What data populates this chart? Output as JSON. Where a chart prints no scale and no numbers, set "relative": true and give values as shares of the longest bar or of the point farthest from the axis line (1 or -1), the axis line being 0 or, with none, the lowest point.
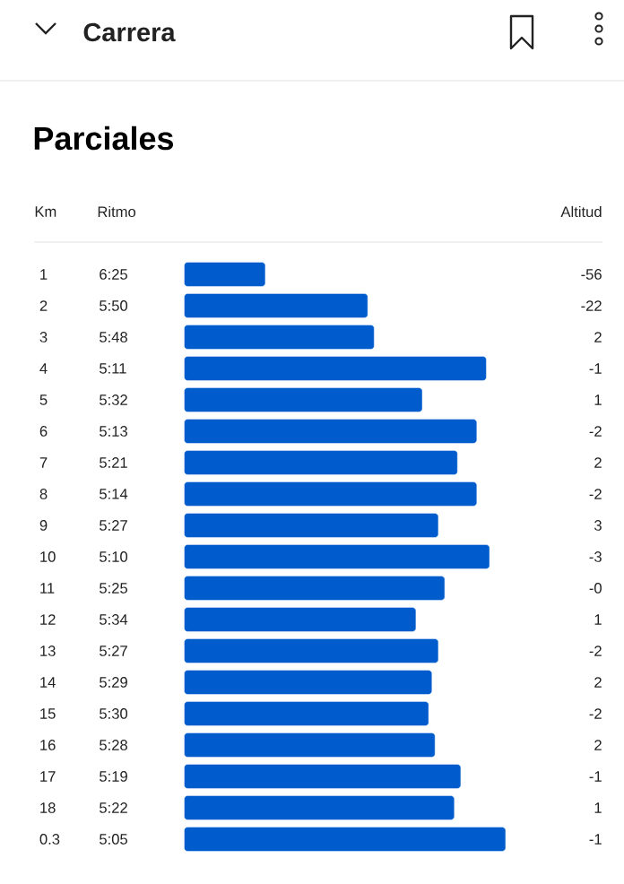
{
  "chart_data": {
    "type": "bar",
    "orientation": "horizontal",
    "relative": true,
    "title": "Carrera",
    "subtitle": "Parciales",
    "categories": [
      "1",
      "2",
      "3",
      "4",
      "5",
      "6",
      "7",
      "8",
      "9",
      "10",
      "11",
      "12",
      "13",
      "14",
      "15",
      "16",
      "17",
      "18",
      "0.3"
    ],
    "values": [
      0.25,
      0.57,
      0.59,
      0.94,
      0.74,
      0.91,
      0.85,
      0.91,
      0.79,
      0.95,
      0.81,
      0.72,
      0.79,
      0.77,
      0.76,
      0.78,
      0.86,
      0.84,
      1
    ],
    "color": "#005ccc",
    "annotations": [
      "Km",
      "Ritmo",
      "Altitud",
      "6:25",
      "5:50",
      "5:48",
      "5:11",
      "5:32",
      "5:13",
      "5:21",
      "5:14",
      "5:27",
      "5:10",
      "5:25",
      "5:34",
      "5:27",
      "5:29",
      "5:30",
      "5:28",
      "5:19",
      "5:22",
      "5:05",
      "-56",
      "-22",
      "2",
      "-1",
      "1",
      "-2",
      "2",
      "-2",
      "3",
      "-3",
      "-0",
      "1",
      "-2",
      "2",
      "-2",
      "2",
      "-1",
      "1",
      "-1"
    ]
  }
}
